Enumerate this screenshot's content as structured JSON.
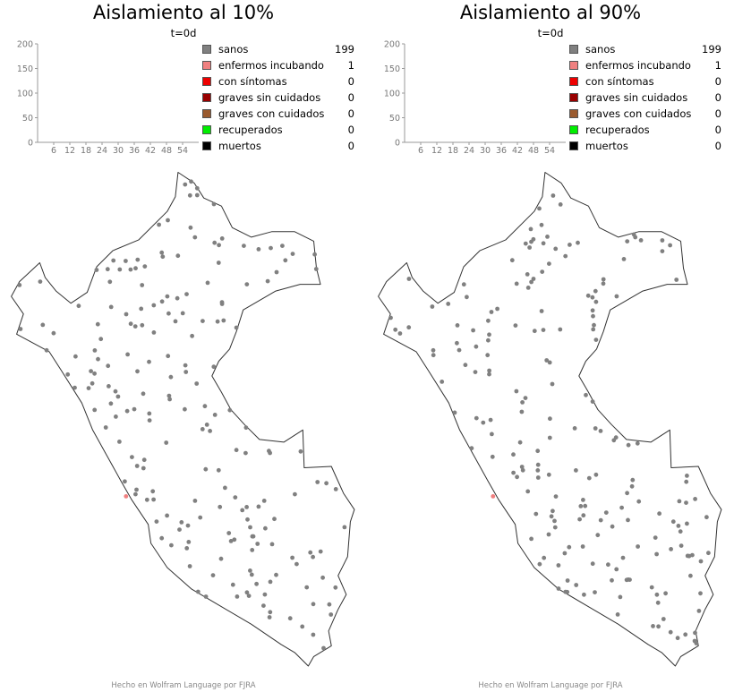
{
  "chart_data": [
    {
      "type": "scatter",
      "title": "Aislamiento al 10%",
      "subtitle": "t=0d",
      "timeseries": {
        "ylim": [
          0,
          200
        ],
        "yticks": [
          0,
          50,
          100,
          150,
          200
        ],
        "xticks": [
          6,
          12,
          18,
          24,
          30,
          36,
          42,
          48,
          54
        ],
        "series": []
      },
      "legend": [
        {
          "label": "sanos",
          "count": 199,
          "color": "#808080"
        },
        {
          "label": "enfermos incubando",
          "count": 1,
          "color": "#f08080"
        },
        {
          "label": "con síntomas",
          "count": 0,
          "color": "#ee0000"
        },
        {
          "label": "graves sin cuidados",
          "count": 0,
          "color": "#990000"
        },
        {
          "label": "graves con cuidados",
          "count": 0,
          "color": "#9a5a2e"
        },
        {
          "label": "recuperados",
          "count": 0,
          "color": "#00ee00"
        },
        {
          "label": "muertos",
          "count": 0,
          "color": "#000000"
        }
      ],
      "seed": 7,
      "infected": [
        [
          -77.12,
          -12.06
        ]
      ],
      "footer": "Hecho en Wolfram Language por FJRA"
    },
    {
      "type": "scatter",
      "title": "Aislamiento al 90%",
      "subtitle": "t=0d",
      "timeseries": {
        "ylim": [
          0,
          200
        ],
        "yticks": [
          0,
          50,
          100,
          150,
          200
        ],
        "xticks": [
          6,
          12,
          18,
          24,
          30,
          36,
          42,
          48,
          54
        ],
        "series": []
      },
      "legend": [
        {
          "label": "sanos",
          "count": 199,
          "color": "#808080"
        },
        {
          "label": "enfermos incubando",
          "count": 1,
          "color": "#f08080"
        },
        {
          "label": "con síntomas",
          "count": 0,
          "color": "#ee0000"
        },
        {
          "label": "graves sin cuidados",
          "count": 0,
          "color": "#990000"
        },
        {
          "label": "graves con cuidados",
          "count": 0,
          "color": "#9a5a2e"
        },
        {
          "label": "recuperados",
          "count": 0,
          "color": "#00ee00"
        },
        {
          "label": "muertos",
          "count": 0,
          "color": "#000000"
        }
      ],
      "seed": 23,
      "infected": [
        [
          -77.12,
          -12.06
        ]
      ],
      "footer": "Hecho en Wolfram Language por FJRA"
    }
  ]
}
